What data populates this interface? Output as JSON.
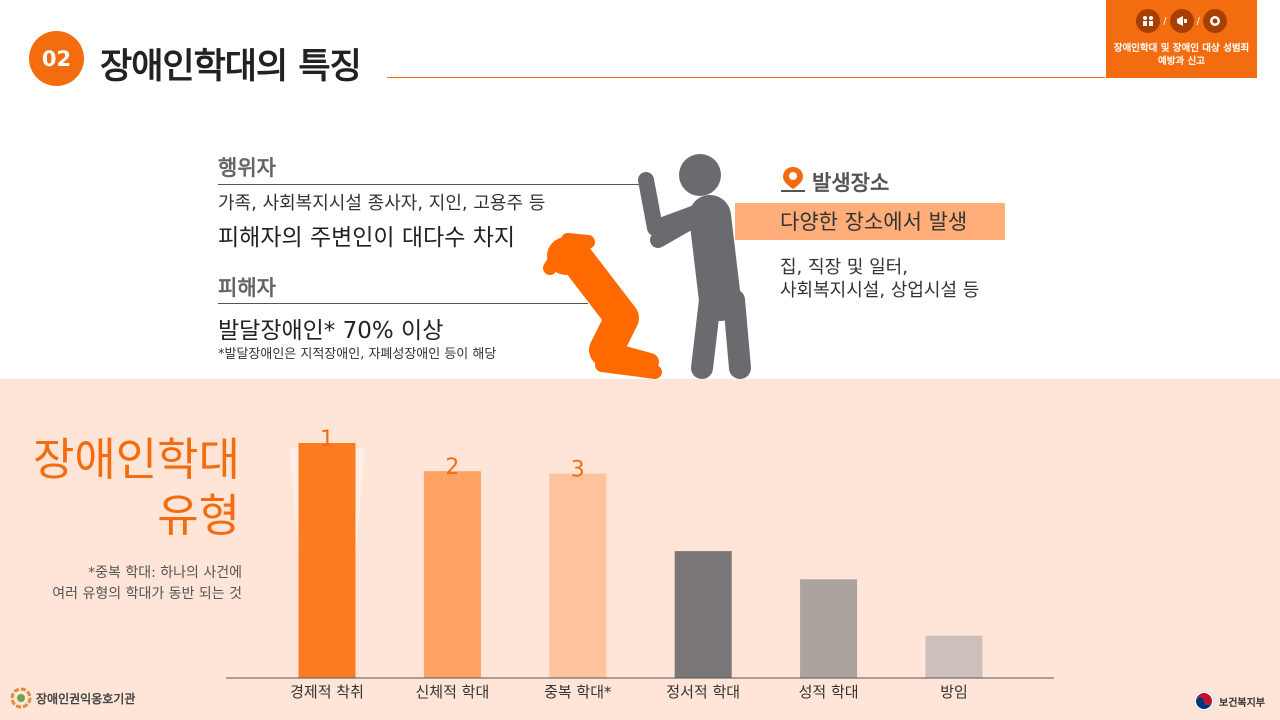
{
  "header": {
    "section_number": "02",
    "title": "장애인학대의 특징",
    "corner_label_line1": "장애인학대 및 장애인 대상 성범죄",
    "corner_label_line2": "예방과 신고"
  },
  "perpetrator": {
    "label": "행위자",
    "detail": "가족, 사회복지시설 종사자, 지인, 고용주 등",
    "summary": "피해자의 주변인이 대다수 차지"
  },
  "victim": {
    "label": "피해자",
    "summary": "발달장애인* 70% 이상",
    "note": "*발달장애인은 지적장애인, 자폐성장애인 등이 해당"
  },
  "place": {
    "label": "발생장소",
    "summary": "다양한 장소에서 발생",
    "detail_line1": "집, 직장 및 일터,",
    "detail_line2": "사회복지시설, 상업시설 등"
  },
  "types": {
    "title_line1": "장애인학대",
    "title_line2": "유형",
    "note_line1": "*중복 학대: 하나의 사건에",
    "note_line2": "여러 유형의 학대가 동반 되는 것"
  },
  "chart_data": {
    "type": "bar",
    "categories": [
      "경제적 착취",
      "신체적 학대",
      "중복 학대*",
      "정서적 학대",
      "성적 학대",
      "방임"
    ],
    "values": [
      100,
      88,
      87,
      54,
      42,
      18
    ],
    "rank_labels": [
      "1",
      "2",
      "3",
      "",
      "",
      ""
    ],
    "colors": [
      "#fb7b20",
      "#ffa263",
      "#ffc49e",
      "#7b7778",
      "#aca29e",
      "#cdc0bb"
    ],
    "ylim": [
      0,
      100
    ],
    "title": "",
    "xlabel": "",
    "ylabel": ""
  },
  "footer": {
    "left_org": "장애인권익옹호기관",
    "right_org": "보건복지부"
  },
  "colors": {
    "accent": "#f36c0f",
    "band": "#fee5d7",
    "figure_gray": "#6b6a6e"
  }
}
